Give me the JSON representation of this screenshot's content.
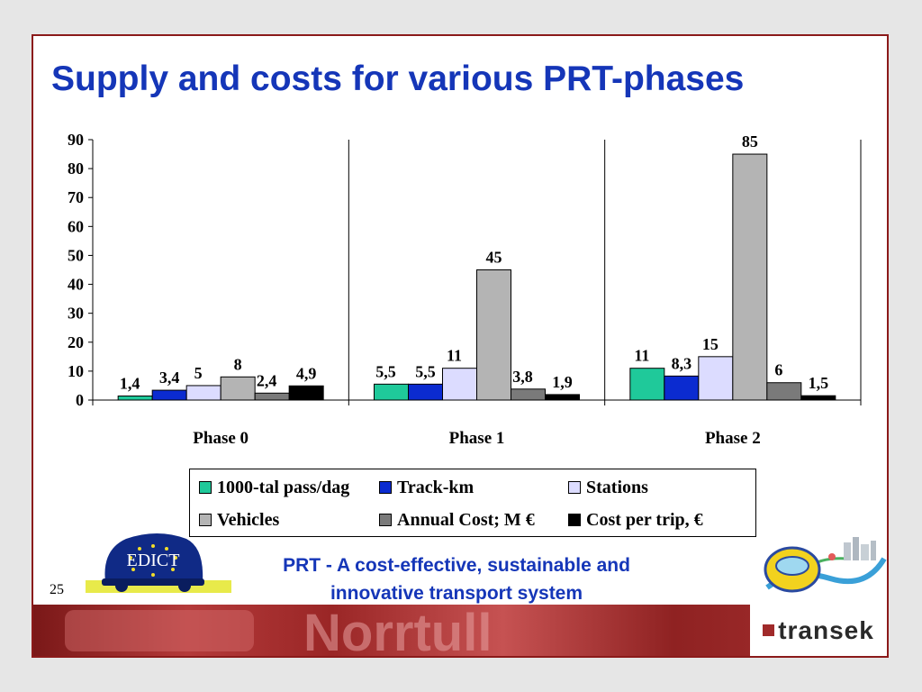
{
  "title": "Supply and costs for various PRT-phases",
  "footer_line1": "PRT - A cost-effective, sustainable and",
  "footer_line2": "innovative transport system",
  "page_number": "25",
  "edict_logo_text": "EDICT",
  "company": "transek",
  "background_text": "Norrtull",
  "colors": {
    "title": "#1536b8",
    "frame": "#8b1a1a",
    "series": [
      "#1fc99a",
      "#0b2bd0",
      "#dcdcff",
      "#b4b4b4",
      "#7a7a7a",
      "#000000"
    ]
  },
  "chart_data": {
    "type": "bar",
    "categories": [
      "Phase 0",
      "Phase 1",
      "Phase 2"
    ],
    "series": [
      {
        "name": "1000-tal pass/dag",
        "values": [
          1.4,
          5.5,
          11
        ],
        "labels": [
          "1,4",
          "5,5",
          "11"
        ]
      },
      {
        "name": "Track-km",
        "values": [
          3.4,
          5.5,
          8.3
        ],
        "labels": [
          "3,4",
          "5,5",
          "8,3"
        ]
      },
      {
        "name": "Stations",
        "values": [
          5,
          11,
          15
        ],
        "labels": [
          "5",
          "11",
          "15"
        ]
      },
      {
        "name": "Vehicles",
        "values": [
          8,
          45,
          85
        ],
        "labels": [
          "8",
          "45",
          "85"
        ]
      },
      {
        "name": "Annual Cost; M €",
        "values": [
          2.4,
          3.8,
          6
        ],
        "labels": [
          "2,4",
          "3,8",
          "6"
        ]
      },
      {
        "name": "Cost per trip, €",
        "values": [
          4.9,
          1.9,
          1.5
        ],
        "labels": [
          "4,9",
          "1,9",
          "1,5"
        ]
      }
    ],
    "yticks": [
      "0",
      "10",
      "20",
      "30",
      "40",
      "50",
      "60",
      "70",
      "80",
      "90"
    ],
    "ylim": [
      0,
      90
    ],
    "xlabel": "",
    "ylabel": "",
    "grid": false,
    "legend_position": "bottom"
  }
}
